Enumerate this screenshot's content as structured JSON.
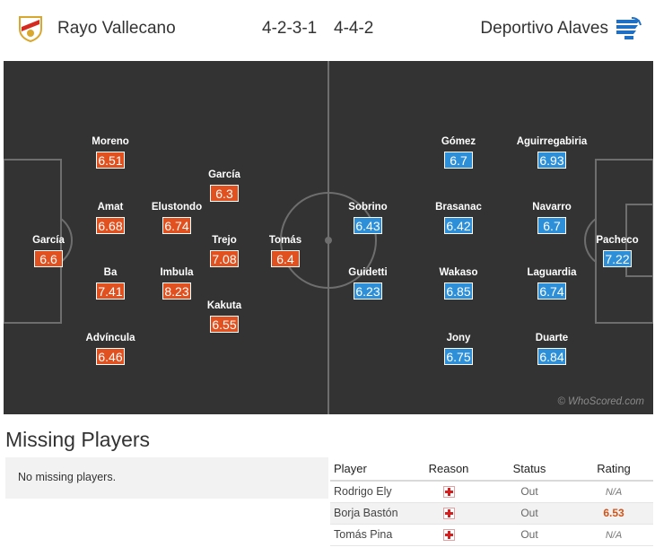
{
  "header": {
    "home_team": "Rayo Vallecano",
    "away_team": "Deportivo Alaves",
    "home_formation": "4-2-3-1",
    "away_formation": "4-4-2",
    "home_logo_icon": "rayo-vallecano-crest-icon",
    "away_logo_icon": "alaves-crest-icon"
  },
  "colors": {
    "home": "#e0511f",
    "away": "#2d8fd8",
    "pitch": "#333333"
  },
  "pitch": {
    "watermark": "© WhoScored.com",
    "home_players": [
      {
        "name": "García",
        "rating": "6.6"
      },
      {
        "name": "Moreno",
        "rating": "6.51"
      },
      {
        "name": "Amat",
        "rating": "6.68"
      },
      {
        "name": "Ba",
        "rating": "7.41"
      },
      {
        "name": "Advíncula",
        "rating": "6.46"
      },
      {
        "name": "Elustondo",
        "rating": "6.74"
      },
      {
        "name": "Imbula",
        "rating": "8.23"
      },
      {
        "name": "García",
        "rating": "6.3"
      },
      {
        "name": "Trejo",
        "rating": "7.08"
      },
      {
        "name": "Kakuta",
        "rating": "6.55"
      },
      {
        "name": "Tomás",
        "rating": "6.4"
      }
    ],
    "away_players": [
      {
        "name": "Pacheco",
        "rating": "7.22"
      },
      {
        "name": "Aguirregabiria",
        "rating": "6.93"
      },
      {
        "name": "Navarro",
        "rating": "6.7"
      },
      {
        "name": "Laguardia",
        "rating": "6.74"
      },
      {
        "name": "Duarte",
        "rating": "6.84"
      },
      {
        "name": "Gómez",
        "rating": "6.7"
      },
      {
        "name": "Brasanac",
        "rating": "6.42"
      },
      {
        "name": "Wakaso",
        "rating": "6.85"
      },
      {
        "name": "Jony",
        "rating": "6.75"
      },
      {
        "name": "Sobrino",
        "rating": "6.43"
      },
      {
        "name": "Guidetti",
        "rating": "6.23"
      }
    ]
  },
  "missing": {
    "title": "Missing Players",
    "home_empty": "No missing players.",
    "columns": [
      "Player",
      "Reason",
      "Status",
      "Rating"
    ],
    "rows": [
      {
        "player": "Rodrigo Ely",
        "reason_icon": "injury-icon",
        "status": "Out",
        "rating": "N/A"
      },
      {
        "player": "Borja Bastón",
        "reason_icon": "injury-icon",
        "status": "Out",
        "rating": "6.53"
      },
      {
        "player": "Tomás Pina",
        "reason_icon": "injury-icon",
        "status": "Out",
        "rating": "N/A"
      }
    ]
  }
}
